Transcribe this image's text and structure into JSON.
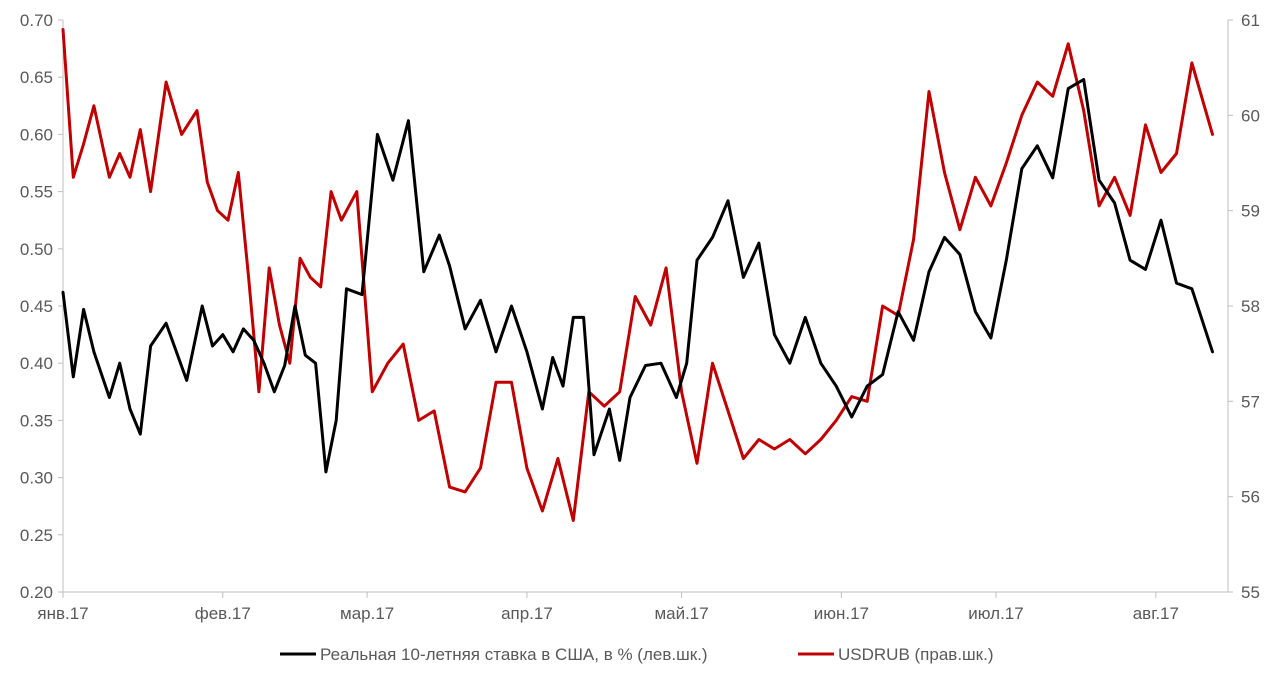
{
  "chart_data": {
    "type": "line",
    "title": "",
    "x_labels": [
      "янв.17",
      "фев.17",
      "мар.17",
      "апр.17",
      "май.17",
      "июн.17",
      "июл.17",
      "авг.17"
    ],
    "left_axis": {
      "ylim": [
        0.2,
        0.7
      ],
      "ticks": [
        "0.20",
        "0.25",
        "0.30",
        "0.35",
        "0.40",
        "0.45",
        "0.50",
        "0.55",
        "0.60",
        "0.65",
        "0.70"
      ]
    },
    "right_axis": {
      "ylim": [
        55,
        61
      ],
      "ticks": [
        "55",
        "56",
        "57",
        "58",
        "59",
        "60",
        "61"
      ]
    },
    "grid": false,
    "legend_position": "bottom",
    "colors": {
      "rate": "#000000",
      "usdrub": "#c00000",
      "axis": "#bfbfbf",
      "text": "#595959"
    },
    "series": [
      {
        "name": "Реальная 10-летняя ставка в США, в % (лев.шк.)",
        "axis": "left",
        "color": "#000000",
        "x": [
          "2017-01-01",
          "2017-01-03",
          "2017-01-05",
          "2017-01-07",
          "2017-01-10",
          "2017-01-12",
          "2017-01-14",
          "2017-01-16",
          "2017-01-18",
          "2017-01-21",
          "2017-01-25",
          "2017-01-28",
          "2017-01-30",
          "2017-02-01",
          "2017-02-03",
          "2017-02-05",
          "2017-02-07",
          "2017-02-09",
          "2017-02-11",
          "2017-02-13",
          "2017-02-15",
          "2017-02-17",
          "2017-02-19",
          "2017-02-21",
          "2017-02-23",
          "2017-02-25",
          "2017-02-28",
          "2017-03-03",
          "2017-03-06",
          "2017-03-09",
          "2017-03-12",
          "2017-03-15",
          "2017-03-17",
          "2017-03-20",
          "2017-03-23",
          "2017-03-26",
          "2017-03-29",
          "2017-04-01",
          "2017-04-04",
          "2017-04-06",
          "2017-04-08",
          "2017-04-10",
          "2017-04-12",
          "2017-04-14",
          "2017-04-17",
          "2017-04-19",
          "2017-04-21",
          "2017-04-24",
          "2017-04-27",
          "2017-04-30",
          "2017-05-02",
          "2017-05-04",
          "2017-05-07",
          "2017-05-10",
          "2017-05-13",
          "2017-05-16",
          "2017-05-19",
          "2017-05-22",
          "2017-05-25",
          "2017-05-28",
          "2017-05-31",
          "2017-06-03",
          "2017-06-06",
          "2017-06-09",
          "2017-06-12",
          "2017-06-15",
          "2017-06-18",
          "2017-06-21",
          "2017-06-24",
          "2017-06-27",
          "2017-06-30",
          "2017-07-03",
          "2017-07-06",
          "2017-07-09",
          "2017-07-12",
          "2017-07-15",
          "2017-07-18",
          "2017-07-21",
          "2017-07-24",
          "2017-07-27",
          "2017-07-30",
          "2017-08-02",
          "2017-08-05",
          "2017-08-08",
          "2017-08-12"
        ],
        "values": [
          0.462,
          0.388,
          0.447,
          0.41,
          0.37,
          0.4,
          0.36,
          0.338,
          0.415,
          0.435,
          0.385,
          0.45,
          0.415,
          0.425,
          0.41,
          0.43,
          0.42,
          0.4,
          0.375,
          0.398,
          0.45,
          0.407,
          0.4,
          0.305,
          0.35,
          0.465,
          0.46,
          0.6,
          0.56,
          0.612,
          0.48,
          0.512,
          0.485,
          0.43,
          0.455,
          0.41,
          0.45,
          0.41,
          0.36,
          0.405,
          0.38,
          0.44,
          0.44,
          0.32,
          0.36,
          0.315,
          0.37,
          0.398,
          0.4,
          0.37,
          0.4,
          0.49,
          0.51,
          0.542,
          0.475,
          0.505,
          0.425,
          0.4,
          0.44,
          0.4,
          0.38,
          0.353,
          0.38,
          0.39,
          0.445,
          0.42,
          0.48,
          0.51,
          0.495,
          0.445,
          0.422,
          0.49,
          0.57,
          0.59,
          0.562,
          0.64,
          0.648,
          0.56,
          0.54,
          0.49,
          0.482,
          0.525,
          0.47,
          0.465,
          0.41
        ]
      },
      {
        "name": "USDRUB (прав.шк.)",
        "axis": "right",
        "color": "#c00000",
        "x": [
          "2017-01-01",
          "2017-01-03",
          "2017-01-05",
          "2017-01-07",
          "2017-01-10",
          "2017-01-12",
          "2017-01-14",
          "2017-01-16",
          "2017-01-18",
          "2017-01-21",
          "2017-01-24",
          "2017-01-27",
          "2017-01-29",
          "2017-01-31",
          "2017-02-02",
          "2017-02-04",
          "2017-02-06",
          "2017-02-08",
          "2017-02-10",
          "2017-02-12",
          "2017-02-14",
          "2017-02-16",
          "2017-02-18",
          "2017-02-20",
          "2017-02-22",
          "2017-02-24",
          "2017-02-27",
          "2017-03-02",
          "2017-03-05",
          "2017-03-08",
          "2017-03-11",
          "2017-03-14",
          "2017-03-17",
          "2017-03-20",
          "2017-03-23",
          "2017-03-26",
          "2017-03-29",
          "2017-04-01",
          "2017-04-04",
          "2017-04-07",
          "2017-04-10",
          "2017-04-13",
          "2017-04-16",
          "2017-04-19",
          "2017-04-22",
          "2017-04-25",
          "2017-04-28",
          "2017-05-01",
          "2017-05-04",
          "2017-05-07",
          "2017-05-10",
          "2017-05-13",
          "2017-05-16",
          "2017-05-19",
          "2017-05-22",
          "2017-05-25",
          "2017-05-28",
          "2017-05-31",
          "2017-06-03",
          "2017-06-06",
          "2017-06-09",
          "2017-06-12",
          "2017-06-15",
          "2017-06-18",
          "2017-06-21",
          "2017-06-24",
          "2017-06-27",
          "2017-06-30",
          "2017-07-03",
          "2017-07-06",
          "2017-07-09",
          "2017-07-12",
          "2017-07-15",
          "2017-07-18",
          "2017-07-21",
          "2017-07-24",
          "2017-07-27",
          "2017-07-30",
          "2017-08-02",
          "2017-08-05",
          "2017-08-08",
          "2017-08-12"
        ],
        "values": [
          60.9,
          59.35,
          59.7,
          60.1,
          59.35,
          59.6,
          59.35,
          59.85,
          59.2,
          60.35,
          59.8,
          60.05,
          59.3,
          59.0,
          58.9,
          59.4,
          58.3,
          57.1,
          58.4,
          57.8,
          57.4,
          58.5,
          58.3,
          58.2,
          59.2,
          58.9,
          59.2,
          57.1,
          57.4,
          57.6,
          56.8,
          56.9,
          56.1,
          56.05,
          56.3,
          57.2,
          57.2,
          56.3,
          55.85,
          56.4,
          55.75,
          57.1,
          56.95,
          57.1,
          58.1,
          57.8,
          58.4,
          57.1,
          56.35,
          57.4,
          56.9,
          56.4,
          56.6,
          56.5,
          56.6,
          56.45,
          56.6,
          56.8,
          57.05,
          57.0,
          58.0,
          57.9,
          58.7,
          60.25,
          59.4,
          58.8,
          59.35,
          59.05,
          59.5,
          60.0,
          60.35,
          60.2,
          60.75,
          60.05,
          59.05,
          59.35,
          58.95,
          59.9,
          59.4,
          59.6,
          60.55,
          59.8
        ]
      }
    ]
  }
}
